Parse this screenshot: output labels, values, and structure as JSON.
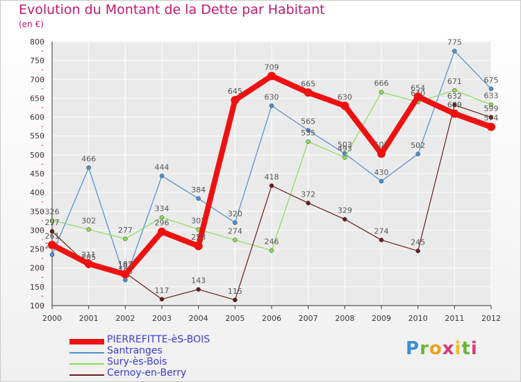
{
  "header": {
    "title": "Evolution du Montant de la Dette par Habitant",
    "unit": "(en €)"
  },
  "brand": {
    "text": "Proxiti"
  },
  "chart_data": {
    "type": "line",
    "title": "Evolution du Montant de la Dette par Habitant",
    "ylabel": "(en €)",
    "ylim": [
      100,
      800
    ],
    "yticks": [
      100,
      150,
      200,
      250,
      300,
      350,
      400,
      450,
      500,
      550,
      600,
      650,
      700,
      750,
      800
    ],
    "categories": [
      "2000",
      "2001",
      "2002",
      "2003",
      "2004",
      "2005",
      "2006",
      "2007",
      "2008",
      "2009",
      "2010",
      "2011",
      "2012"
    ],
    "grid": true,
    "legend": "bottom-left",
    "series": [
      {
        "name": "PIERREFITTE-èS-BOIS",
        "color": "#ee1111",
        "emphasis": true,
        "values": [
          261,
          211,
          183,
          296,
          258,
          645,
          709,
          665,
          630,
          503,
          654,
          609,
          574
        ]
      },
      {
        "name": "Santranges",
        "color": "#4a90d0",
        "values": [
          235,
          466,
          168,
          444,
          384,
          320,
          630,
          565,
          503,
          430,
          502,
          775,
          675
        ]
      },
      {
        "name": "Sury-ès-Bois",
        "color": "#88dd55",
        "values": [
          326,
          302,
          277,
          334,
          302,
          274,
          246,
          535,
          493,
          666,
          640,
          671,
          633
        ]
      },
      {
        "name": "Cernoy-en-Berry",
        "color": "#6b1a1a",
        "values": [
          297,
          205,
          187,
          117,
          143,
          115,
          418,
          372,
          329,
          274,
          245,
          632,
          599
        ]
      }
    ]
  }
}
